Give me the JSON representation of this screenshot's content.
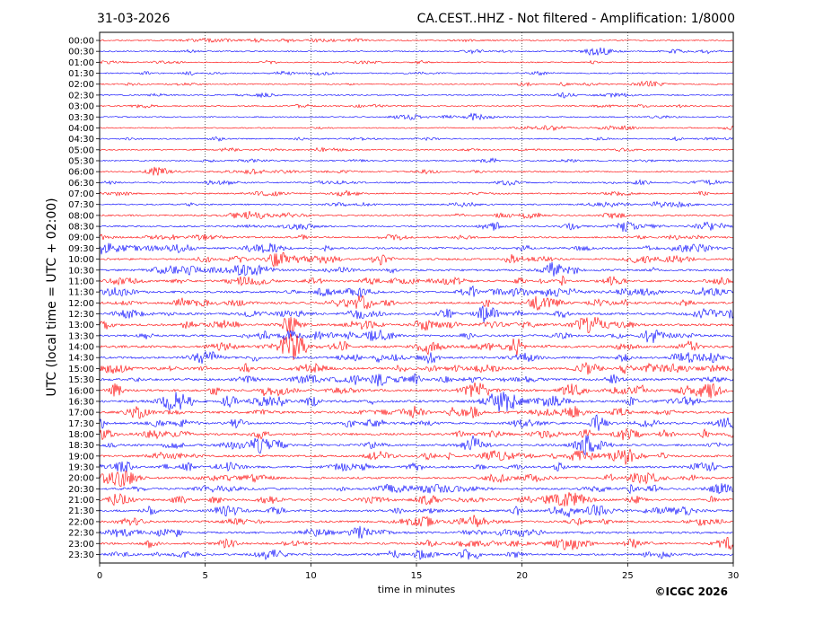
{
  "header": {
    "date": "31-03-2026",
    "title": "CA.CEST..HHZ - Not filtered - Amplification: 1/8000"
  },
  "footer": {
    "copyright": "©ICGC 2026"
  },
  "chart_data": {
    "type": "line",
    "xlabel": "time in minutes",
    "ylabel": "UTC (local time = UTC + 02:00)",
    "xlim": [
      0,
      30
    ],
    "x_ticks": [
      "0",
      "5",
      "10",
      "15",
      "20",
      "25",
      "30"
    ],
    "grid": true,
    "trace_colors": [
      "#ff0000",
      "#0000ff"
    ],
    "row_labels": [
      "00:00",
      "00:30",
      "01:00",
      "01:30",
      "02:00",
      "02:30",
      "03:00",
      "03:30",
      "04:00",
      "04:30",
      "05:00",
      "05:30",
      "06:00",
      "06:30",
      "07:00",
      "07:30",
      "08:00",
      "08:30",
      "09:00",
      "09:30",
      "10:00",
      "10:30",
      "11:00",
      "11:30",
      "12:00",
      "12:30",
      "13:00",
      "13:30",
      "14:00",
      "14:30",
      "15:00",
      "15:30",
      "16:00",
      "16:30",
      "17:00",
      "17:30",
      "18:00",
      "18:30",
      "19:00",
      "19:30",
      "20:00",
      "20:30",
      "21:00",
      "21:30",
      "22:00",
      "22:30",
      "23:00",
      "23:30"
    ],
    "row_activity": [
      0.35,
      0.35,
      0.3,
      0.35,
      0.35,
      0.35,
      0.35,
      0.35,
      0.3,
      0.35,
      0.35,
      0.35,
      0.45,
      0.45,
      0.45,
      0.45,
      0.55,
      0.6,
      0.6,
      0.75,
      0.75,
      0.8,
      0.85,
      0.8,
      0.9,
      0.85,
      0.95,
      0.85,
      0.95,
      0.9,
      0.9,
      0.95,
      0.95,
      0.95,
      0.9,
      0.85,
      0.85,
      0.85,
      0.85,
      0.85,
      0.8,
      0.8,
      0.85,
      0.85,
      0.8,
      0.8,
      0.75,
      0.75
    ]
  }
}
